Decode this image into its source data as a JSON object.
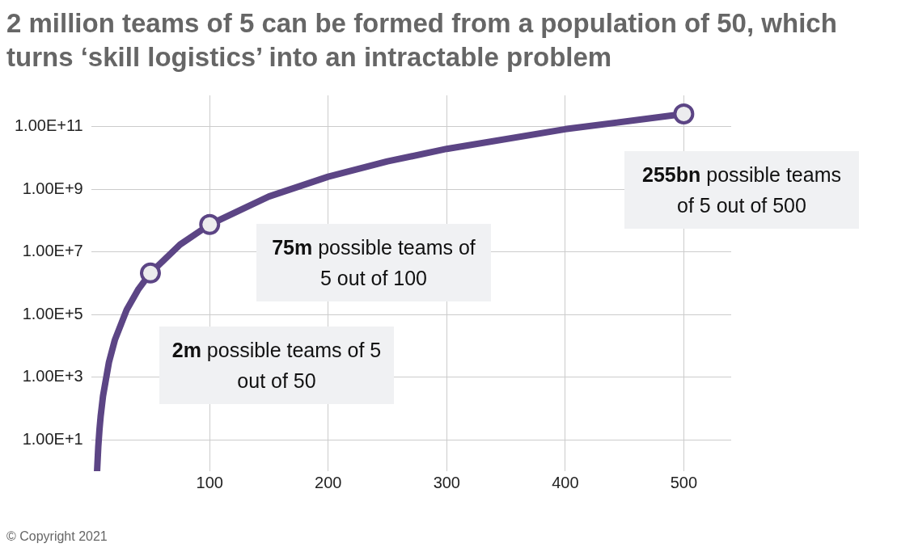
{
  "chart_data": {
    "type": "line",
    "title": "2 million teams of 5 can be formed from a population of 50, which turns ‘skill logistics’ into an intractable problem",
    "x": [
      5,
      6,
      7,
      8,
      10,
      15,
      20,
      30,
      40,
      50,
      75,
      100,
      150,
      200,
      250,
      300,
      400,
      500
    ],
    "series": [
      {
        "color": "#5c4585",
        "marker": "none",
        "values": [
          1,
          6,
          21,
          56,
          252,
          3003,
          15504,
          142506,
          658008,
          2118760,
          17259390,
          75287520,
          591600030,
          2535650040,
          7817031300,
          19582837560,
          83218600080,
          255244687600
        ]
      },
      {
        "type": "scatter",
        "color": "#5c4585",
        "marker": "circle",
        "x": [
          50,
          100,
          500
        ],
        "values": [
          2118760,
          75287520,
          255244687600
        ]
      }
    ],
    "log": "y",
    "grid": true,
    "xlim": [
      0,
      540
    ],
    "xticks": [
      100,
      200,
      300,
      400,
      500
    ],
    "ylim": [
      1,
      1000000000000
    ],
    "yticks": [
      {
        "value": 10,
        "label": "1.00E+1"
      },
      {
        "value": 1000,
        "label": "1.00E+3"
      },
      {
        "value": 100000,
        "label": "1.00E+5"
      },
      {
        "value": 10000000,
        "label": "1.00E+7"
      },
      {
        "value": 1000000000,
        "label": "1.00E+9"
      },
      {
        "value": 100000000000,
        "label": "1.00E+11"
      }
    ],
    "annotations": [
      "2m possible teams of 5 out of 50",
      "75m possible teams of 5 out of 100",
      "255bn possible teams of 5 out of 500",
      "© Copyright 2021"
    ]
  }
}
